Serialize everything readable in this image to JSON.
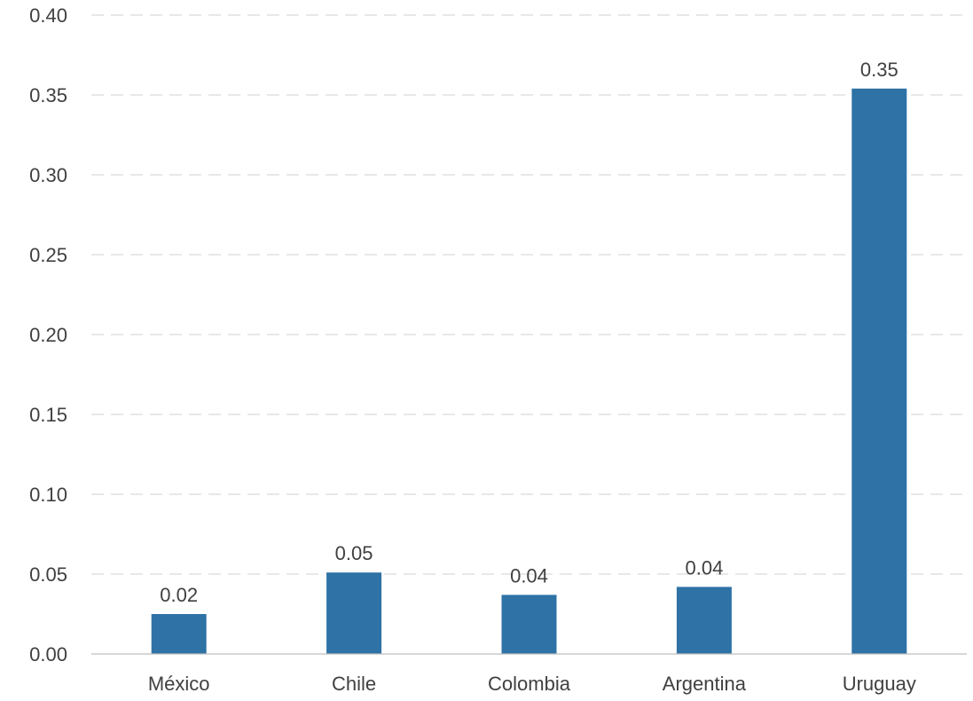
{
  "chart_data": {
    "type": "bar",
    "title": "",
    "xlabel": "",
    "ylabel": "",
    "categories": [
      "México",
      "Chile",
      "Colombia",
      "Argentina",
      "Uruguay"
    ],
    "values": [
      0.025,
      0.051,
      0.037,
      0.042,
      0.354
    ],
    "data_labels": [
      "0.02",
      "0.05",
      "0.04",
      "0.04",
      "0.35"
    ],
    "ylim": [
      0,
      0.4
    ],
    "y_ticks": [
      0.0,
      0.05,
      0.1,
      0.15,
      0.2,
      0.25,
      0.3,
      0.35,
      0.4
    ],
    "y_tick_labels": [
      "0.00",
      "0.05",
      "0.10",
      "0.15",
      "0.20",
      "0.25",
      "0.30",
      "0.35",
      "0.40"
    ],
    "grid": true,
    "grid_style": "dashed",
    "legend": "none",
    "colors": {
      "bar": "#2e72a6",
      "grid": "#d9d9d9",
      "axis": "#bfbfbf",
      "text": "#404040"
    }
  }
}
